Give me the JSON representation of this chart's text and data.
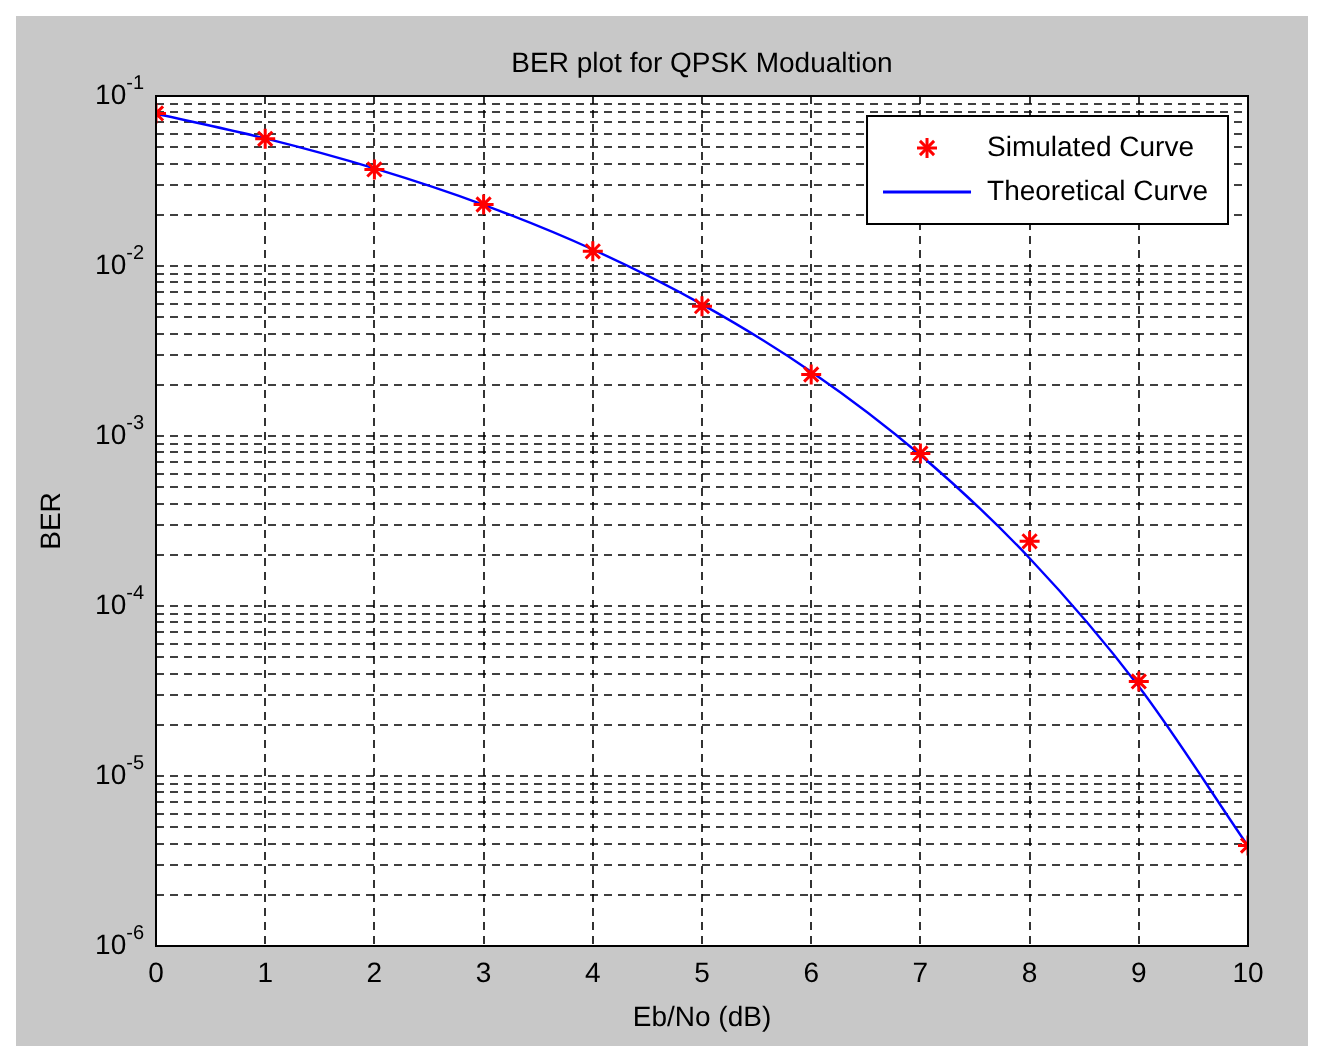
{
  "chart_data": {
    "type": "line",
    "title": "BER plot for QPSK Modualtion",
    "xlabel": "Eb/No (dB)",
    "ylabel": "BER",
    "x": [
      0,
      1,
      2,
      3,
      4,
      5,
      6,
      7,
      8,
      9,
      10
    ],
    "series": [
      {
        "name": "Simulated Curve",
        "type": "scatter",
        "color": "#ff0000",
        "marker": "cross",
        "values": [
          0.079,
          0.056,
          0.037,
          0.023,
          0.0122,
          0.0058,
          0.0023,
          0.00079,
          0.00024,
          3.6e-05,
          3.9e-06
        ]
      },
      {
        "name": "Theoretical Curve",
        "type": "line",
        "color": "#0000ff",
        "marker": "none",
        "line_style": "solid",
        "values": [
          0.0786,
          0.0563,
          0.0375,
          0.0229,
          0.0125,
          0.00595,
          0.00239,
          0.000773,
          0.000191,
          3.36e-05,
          3.87e-06
        ]
      }
    ],
    "log": "y",
    "grid": true,
    "legend": "top right",
    "xlim": [
      0,
      10
    ],
    "xticks": [
      0,
      1,
      2,
      3,
      4,
      5,
      6,
      7,
      8,
      9,
      10
    ],
    "ylim": [
      1e-06,
      0.1
    ],
    "yticks": [
      {
        "value": 1e-06,
        "label": "10$^{-6}$"
      },
      {
        "value": 2e-06,
        "label": null
      },
      {
        "value": 3e-06,
        "label": null
      },
      {
        "value": 4e-06,
        "label": null
      },
      {
        "value": 5e-06,
        "label": null
      },
      {
        "value": 6e-06,
        "label": null
      },
      {
        "value": 7e-06,
        "label": null
      },
      {
        "value": 8e-06,
        "label": null
      },
      {
        "value": 9e-06,
        "label": null
      },
      {
        "value": 1e-05,
        "label": "10$^{-5}$"
      },
      {
        "value": 2e-05,
        "label": null
      },
      {
        "value": 3e-05,
        "label": null
      },
      {
        "value": 4e-05,
        "label": null
      },
      {
        "value": 5e-05,
        "label": null
      },
      {
        "value": 6e-05,
        "label": null
      },
      {
        "value": 7e-05,
        "label": null
      },
      {
        "value": 8e-05,
        "label": null
      },
      {
        "value": 9e-05,
        "label": null
      },
      {
        "value": 0.0001,
        "label": "10$^{-4}$"
      },
      {
        "value": 0.0002,
        "label": null
      },
      {
        "value": 0.0003,
        "label": null
      },
      {
        "value": 0.0004,
        "label": null
      },
      {
        "value": 0.0005,
        "label": null
      },
      {
        "value": 0.0006,
        "label": null
      },
      {
        "value": 0.0007,
        "label": null
      },
      {
        "value": 0.0008,
        "label": null
      },
      {
        "value": 0.0009,
        "label": null
      },
      {
        "value": 0.001,
        "label": "10$^{-3}$"
      },
      {
        "value": 0.002,
        "label": null
      },
      {
        "value": 0.003,
        "label": null
      },
      {
        "value": 0.004,
        "label": null
      },
      {
        "value": 0.005,
        "label": null
      },
      {
        "value": 0.006,
        "label": null
      },
      {
        "value": 0.007,
        "label": null
      },
      {
        "value": 0.008,
        "label": null
      },
      {
        "value": 0.009,
        "label": null
      },
      {
        "value": 0.01,
        "label": "10$^{-2}$"
      },
      {
        "value": 0.02,
        "label": null
      },
      {
        "value": 0.03,
        "label": null
      },
      {
        "value": 0.04,
        "label": null
      },
      {
        "value": 0.05,
        "label": null
      },
      {
        "value": 0.06,
        "label": null
      },
      {
        "value": 0.07,
        "label": null
      },
      {
        "value": 0.08,
        "label": null
      },
      {
        "value": 0.09,
        "label": null
      },
      {
        "value": 0.1,
        "label": "10$^{-1}$"
      }
    ]
  }
}
